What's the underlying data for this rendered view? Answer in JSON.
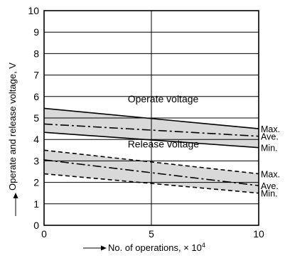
{
  "chart_data": {
    "type": "line",
    "xlabel": "No. of operations, × 10",
    "xlabel_sup": "4",
    "ylabel": "Operate and release voltage, V",
    "xlim": [
      0,
      10
    ],
    "ylim": [
      0,
      10
    ],
    "x_ticks": [
      "0",
      "5",
      "10"
    ],
    "y_ticks": [
      "0",
      "1",
      "2",
      "3",
      "4",
      "5",
      "6",
      "7",
      "8",
      "9",
      "10"
    ],
    "grid": true,
    "band_fill": "#d9d9d9",
    "groups": [
      {
        "label": "Operate voltage",
        "label_pos": [
          3.5,
          5.6
        ],
        "series": [
          {
            "name": "Max.",
            "style": "solid",
            "x": [
              0,
              10
            ],
            "y": [
              5.45,
              4.5
            ]
          },
          {
            "name": "Ave.",
            "style": "dashdot",
            "x": [
              0,
              10
            ],
            "y": [
              4.72,
              4.15
            ]
          },
          {
            "name": "Min.",
            "style": "solid",
            "x": [
              0,
              10
            ],
            "y": [
              4.33,
              3.62
            ]
          }
        ]
      },
      {
        "label": "Release voltage",
        "label_pos": [
          3.5,
          3.5
        ],
        "series": [
          {
            "name": "Max.",
            "style": "dashed",
            "x": [
              0,
              10
            ],
            "y": [
              3.5,
              2.4
            ]
          },
          {
            "name": "Ave.",
            "style": "dashdot",
            "x": [
              0,
              10
            ],
            "y": [
              3.05,
              1.85
            ]
          },
          {
            "name": "Min.",
            "style": "dashed",
            "x": [
              0,
              10
            ],
            "y": [
              2.4,
              1.5
            ]
          }
        ]
      }
    ]
  }
}
